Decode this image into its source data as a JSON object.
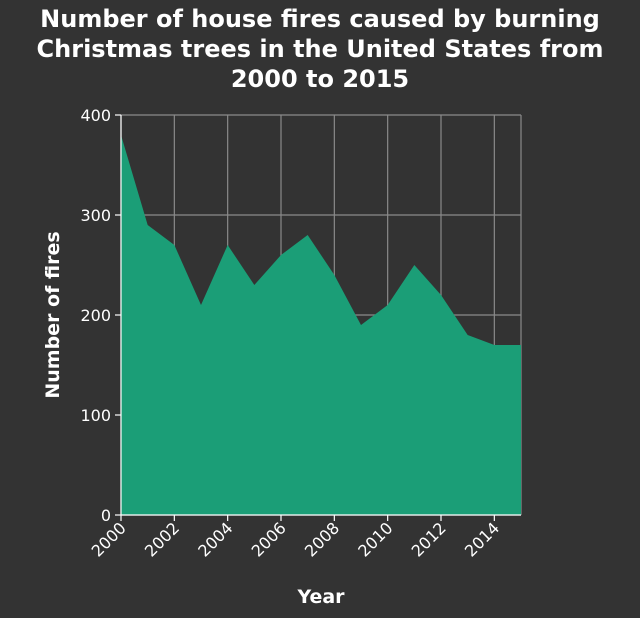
{
  "chart_data": {
    "type": "area",
    "title_lines": [
      "Number of house fires caused by burning",
      "Christmas trees in the United States from",
      "2000 to 2015"
    ],
    "xlabel": "Year",
    "ylabel": "Number of fires",
    "x": [
      2000,
      2001,
      2002,
      2003,
      2004,
      2005,
      2006,
      2007,
      2008,
      2009,
      2010,
      2011,
      2012,
      2013,
      2014,
      2015
    ],
    "values": [
      380,
      290,
      270,
      210,
      270,
      230,
      260,
      280,
      240,
      190,
      210,
      250,
      220,
      180,
      170,
      170
    ],
    "xlim": [
      2000,
      2015
    ],
    "ylim": [
      0,
      400
    ],
    "x_ticks": [
      "2000",
      "2002",
      "2004",
      "2006",
      "2008",
      "2010",
      "2012",
      "2014"
    ],
    "y_ticks": [
      "0",
      "100",
      "200",
      "300",
      "400"
    ],
    "grid": true,
    "fill_color": "#1b9e77",
    "background_color": "#333333"
  }
}
